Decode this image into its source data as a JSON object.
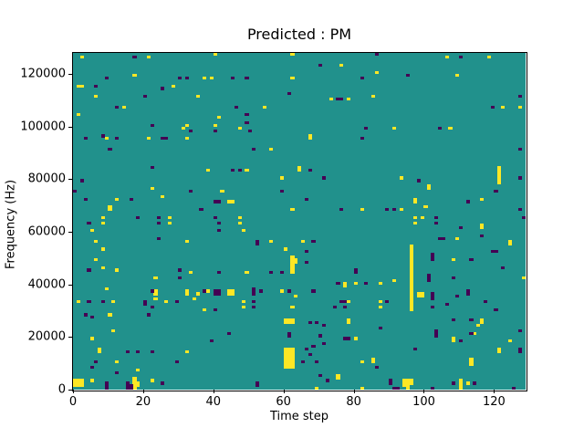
{
  "figure": {
    "title": "Predicted : PM",
    "xlabel": "Time step",
    "ylabel": "Frequency (Hz)"
  },
  "chart_data": {
    "type": "heatmap",
    "title": "Predicted : PM",
    "xlabel": "Time step",
    "ylabel": "Frequency (Hz)",
    "x_range": [
      0,
      129
    ],
    "y_range": [
      0,
      128000
    ],
    "x_ticks": [
      0,
      20,
      40,
      60,
      80,
      100,
      120
    ],
    "y_ticks": [
      0,
      20000,
      40000,
      60000,
      80000,
      100000,
      120000
    ],
    "grid": {
      "cols": 129,
      "rows": 128,
      "hz_per_row": 1000
    },
    "colors": {
      "mid": "#21918c",
      "high": "#fde725",
      "low": "#440154",
      "spine": "#000000",
      "background": "#ffffff"
    },
    "legend": null,
    "note": "cells are [time_bin, freq_bin]; freq_hz = freq_bin * 1000; all other cells are mid value",
    "cells_high": [
      [
        2,
        126
      ],
      [
        21,
        126
      ],
      [
        17,
        119
      ],
      [
        1,
        115
      ],
      [
        2,
        115
      ],
      [
        28,
        115
      ],
      [
        6,
        111
      ],
      [
        14,
        107
      ],
      [
        1,
        104
      ],
      [
        31,
        99
      ],
      [
        9,
        95
      ],
      [
        21,
        95
      ],
      [
        22,
        76
      ],
      [
        25,
        73
      ],
      [
        12,
        72
      ],
      [
        10,
        69
      ],
      [
        10,
        68
      ],
      [
        8,
        65
      ],
      [
        27,
        65
      ],
      [
        8,
        63
      ],
      [
        27,
        63
      ],
      [
        5,
        60
      ],
      [
        6,
        56
      ],
      [
        8,
        53
      ],
      [
        6,
        49
      ],
      [
        8,
        46
      ],
      [
        12,
        45
      ],
      [
        23,
        42
      ],
      [
        9,
        38
      ],
      [
        23,
        37
      ],
      [
        23,
        36
      ],
      [
        23,
        34
      ],
      [
        1,
        33
      ],
      [
        11,
        33
      ],
      [
        26,
        33
      ],
      [
        10,
        28
      ],
      [
        11,
        22
      ],
      [
        5,
        19
      ],
      [
        7,
        15
      ],
      [
        7,
        14
      ],
      [
        12,
        10
      ],
      [
        18,
        7
      ],
      [
        5,
        3
      ],
      [
        22,
        3
      ],
      [
        0,
        1
      ],
      [
        0,
        2
      ],
      [
        0,
        3
      ],
      [
        1,
        1
      ],
      [
        1,
        2
      ],
      [
        1,
        3
      ],
      [
        2,
        1
      ],
      [
        2,
        2
      ],
      [
        2,
        3
      ],
      [
        17,
        0
      ],
      [
        17,
        1
      ],
      [
        17,
        2
      ],
      [
        17,
        3
      ],
      [
        17,
        4
      ],
      [
        18,
        1
      ],
      [
        18,
        2
      ],
      [
        40,
        127
      ],
      [
        62,
        127
      ],
      [
        37,
        118
      ],
      [
        39,
        118
      ],
      [
        62,
        118
      ],
      [
        35,
        111
      ],
      [
        54,
        107
      ],
      [
        41,
        103
      ],
      [
        40,
        100
      ],
      [
        32,
        100
      ],
      [
        47,
        99
      ],
      [
        32,
        95
      ],
      [
        56,
        91
      ],
      [
        38,
        83
      ],
      [
        49,
        83
      ],
      [
        59,
        80
      ],
      [
        42,
        75
      ],
      [
        44,
        71
      ],
      [
        45,
        71
      ],
      [
        62,
        68
      ],
      [
        47,
        65
      ],
      [
        47,
        63
      ],
      [
        48,
        60
      ],
      [
        32,
        56
      ],
      [
        56,
        56
      ],
      [
        60,
        53
      ],
      [
        62,
        44
      ],
      [
        62,
        45
      ],
      [
        62,
        46
      ],
      [
        62,
        47
      ],
      [
        62,
        48
      ],
      [
        62,
        49
      ],
      [
        62,
        50
      ],
      [
        63,
        48
      ],
      [
        63,
        49
      ],
      [
        33,
        44
      ],
      [
        49,
        44
      ],
      [
        32,
        36
      ],
      [
        32,
        37
      ],
      [
        35,
        36
      ],
      [
        38,
        37
      ],
      [
        44,
        36
      ],
      [
        44,
        37
      ],
      [
        45,
        36
      ],
      [
        45,
        37
      ],
      [
        59,
        37
      ],
      [
        34,
        34
      ],
      [
        48,
        33
      ],
      [
        63,
        35
      ],
      [
        37,
        30
      ],
      [
        48,
        31
      ],
      [
        62,
        31
      ],
      [
        32,
        14
      ],
      [
        60,
        26
      ],
      [
        61,
        26
      ],
      [
        62,
        26
      ],
      [
        60,
        25
      ],
      [
        61,
        25
      ],
      [
        62,
        25
      ],
      [
        60,
        8
      ],
      [
        60,
        9
      ],
      [
        60,
        10
      ],
      [
        60,
        11
      ],
      [
        60,
        12
      ],
      [
        60,
        13
      ],
      [
        60,
        14
      ],
      [
        60,
        15
      ],
      [
        61,
        8
      ],
      [
        61,
        9
      ],
      [
        61,
        10
      ],
      [
        61,
        11
      ],
      [
        61,
        12
      ],
      [
        61,
        13
      ],
      [
        61,
        14
      ],
      [
        61,
        15
      ],
      [
        62,
        8
      ],
      [
        62,
        9
      ],
      [
        62,
        10
      ],
      [
        62,
        11
      ],
      [
        62,
        12
      ],
      [
        62,
        13
      ],
      [
        62,
        14
      ],
      [
        62,
        15
      ],
      [
        76,
        123
      ],
      [
        86,
        120
      ],
      [
        73,
        110
      ],
      [
        78,
        110
      ],
      [
        85,
        111
      ],
      [
        91,
        99
      ],
      [
        67,
        96
      ],
      [
        67,
        95
      ],
      [
        64,
        83
      ],
      [
        64,
        84
      ],
      [
        93,
        80
      ],
      [
        82,
        68
      ],
      [
        93,
        68
      ],
      [
        65,
        56
      ],
      [
        77,
        39
      ],
      [
        77,
        40
      ],
      [
        80,
        40
      ],
      [
        87,
        40
      ],
      [
        91,
        41
      ],
      [
        78,
        33
      ],
      [
        87,
        33
      ],
      [
        87,
        31
      ],
      [
        78,
        25
      ],
      [
        78,
        26
      ],
      [
        80,
        19
      ],
      [
        82,
        10
      ],
      [
        85,
        10
      ],
      [
        85,
        11
      ],
      [
        75,
        4
      ],
      [
        75,
        5
      ],
      [
        94,
        1
      ],
      [
        94,
        2
      ],
      [
        94,
        3
      ],
      [
        95,
        0
      ],
      [
        95,
        1
      ],
      [
        95,
        2
      ],
      [
        95,
        3
      ],
      [
        96,
        2
      ],
      [
        96,
        3
      ],
      [
        106,
        126
      ],
      [
        118,
        126
      ],
      [
        109,
        119
      ],
      [
        122,
        107
      ],
      [
        127,
        107
      ],
      [
        107,
        99
      ],
      [
        121,
        78
      ],
      [
        121,
        79
      ],
      [
        121,
        80
      ],
      [
        121,
        81
      ],
      [
        121,
        82
      ],
      [
        121,
        83
      ],
      [
        121,
        84
      ],
      [
        101,
        76
      ],
      [
        101,
        77
      ],
      [
        97,
        71
      ],
      [
        97,
        72
      ],
      [
        116,
        72
      ],
      [
        100,
        69
      ],
      [
        97,
        65
      ],
      [
        99,
        65
      ],
      [
        96,
        30
      ],
      [
        96,
        31
      ],
      [
        96,
        32
      ],
      [
        96,
        33
      ],
      [
        96,
        34
      ],
      [
        96,
        35
      ],
      [
        96,
        36
      ],
      [
        96,
        37
      ],
      [
        96,
        38
      ],
      [
        96,
        39
      ],
      [
        96,
        40
      ],
      [
        96,
        41
      ],
      [
        96,
        42
      ],
      [
        96,
        43
      ],
      [
        96,
        44
      ],
      [
        96,
        45
      ],
      [
        96,
        46
      ],
      [
        96,
        47
      ],
      [
        96,
        48
      ],
      [
        96,
        49
      ],
      [
        96,
        50
      ],
      [
        96,
        51
      ],
      [
        96,
        52
      ],
      [
        96,
        53
      ],
      [
        96,
        54
      ],
      [
        97,
        63
      ],
      [
        116,
        61
      ],
      [
        116,
        62
      ],
      [
        109,
        57
      ],
      [
        124,
        55
      ],
      [
        124,
        56
      ],
      [
        108,
        49
      ],
      [
        128,
        42
      ],
      [
        98,
        35
      ],
      [
        98,
        36
      ],
      [
        99,
        35
      ],
      [
        99,
        36
      ],
      [
        116,
        25
      ],
      [
        116,
        26
      ],
      [
        115,
        24
      ],
      [
        114,
        21
      ],
      [
        108,
        18
      ],
      [
        108,
        19
      ],
      [
        124,
        18
      ],
      [
        121,
        14
      ],
      [
        121,
        15
      ],
      [
        113,
        9
      ],
      [
        113,
        10
      ],
      [
        113,
        11
      ],
      [
        110,
        0
      ],
      [
        110,
        1
      ],
      [
        110,
        2
      ],
      [
        110,
        3
      ],
      [
        112,
        2
      ],
      [
        69,
        0
      ],
      [
        82,
        0
      ]
    ],
    "cells_low": [
      [
        17,
        126
      ],
      [
        9,
        118
      ],
      [
        6,
        115
      ],
      [
        25,
        114
      ],
      [
        30,
        118
      ],
      [
        20,
        111
      ],
      [
        12,
        107
      ],
      [
        22,
        100
      ],
      [
        3,
        95
      ],
      [
        12,
        95
      ],
      [
        25,
        95
      ],
      [
        26,
        95
      ],
      [
        8,
        96
      ],
      [
        10,
        91
      ],
      [
        22,
        84
      ],
      [
        2,
        79
      ],
      [
        0,
        75
      ],
      [
        3,
        72
      ],
      [
        16,
        72
      ],
      [
        18,
        65
      ],
      [
        24,
        65
      ],
      [
        4,
        63
      ],
      [
        24,
        63
      ],
      [
        24,
        57
      ],
      [
        4,
        45
      ],
      [
        30,
        45
      ],
      [
        30,
        42
      ],
      [
        22,
        37
      ],
      [
        4,
        33
      ],
      [
        8,
        33
      ],
      [
        20,
        33
      ],
      [
        29,
        33
      ],
      [
        20,
        32
      ],
      [
        22,
        31
      ],
      [
        3,
        28
      ],
      [
        5,
        27
      ],
      [
        21,
        28
      ],
      [
        15,
        14
      ],
      [
        18,
        14
      ],
      [
        22,
        14
      ],
      [
        6,
        10
      ],
      [
        29,
        10
      ],
      [
        5,
        8
      ],
      [
        12,
        6
      ],
      [
        9,
        0
      ],
      [
        9,
        1
      ],
      [
        9,
        2
      ],
      [
        15,
        0
      ],
      [
        15,
        1
      ],
      [
        15,
        2
      ],
      [
        16,
        0
      ],
      [
        16,
        1
      ],
      [
        25,
        2
      ],
      [
        32,
        118
      ],
      [
        45,
        118
      ],
      [
        49,
        118
      ],
      [
        61,
        112
      ],
      [
        46,
        107
      ],
      [
        49,
        104
      ],
      [
        49,
        101
      ],
      [
        40,
        98
      ],
      [
        50,
        98
      ],
      [
        33,
        98
      ],
      [
        51,
        91
      ],
      [
        45,
        83
      ],
      [
        47,
        83
      ],
      [
        33,
        75
      ],
      [
        59,
        75
      ],
      [
        40,
        71
      ],
      [
        41,
        71
      ],
      [
        36,
        68
      ],
      [
        40,
        65
      ],
      [
        41,
        63
      ],
      [
        41,
        60
      ],
      [
        52,
        55
      ],
      [
        52,
        56
      ],
      [
        41,
        44
      ],
      [
        56,
        44
      ],
      [
        59,
        44
      ],
      [
        37,
        37
      ],
      [
        40,
        36
      ],
      [
        40,
        37
      ],
      [
        41,
        36
      ],
      [
        41,
        37
      ],
      [
        51,
        36
      ],
      [
        51,
        37
      ],
      [
        51,
        38
      ],
      [
        53,
        37
      ],
      [
        61,
        37
      ],
      [
        51,
        33
      ],
      [
        40,
        30
      ],
      [
        51,
        31
      ],
      [
        44,
        21
      ],
      [
        39,
        18
      ],
      [
        61,
        20
      ],
      [
        61,
        21
      ],
      [
        52,
        1
      ],
      [
        52,
        2
      ],
      [
        86,
        127
      ],
      [
        70,
        123
      ],
      [
        82,
        118
      ],
      [
        95,
        119
      ],
      [
        75,
        110
      ],
      [
        76,
        110
      ],
      [
        83,
        99
      ],
      [
        82,
        95
      ],
      [
        67,
        83
      ],
      [
        71,
        80
      ],
      [
        66,
        72
      ],
      [
        76,
        68
      ],
      [
        89,
        68
      ],
      [
        91,
        68
      ],
      [
        68,
        56
      ],
      [
        66,
        52
      ],
      [
        66,
        48
      ],
      [
        80,
        44
      ],
      [
        80,
        45
      ],
      [
        75,
        40
      ],
      [
        83,
        40
      ],
      [
        68,
        37
      ],
      [
        76,
        33
      ],
      [
        77,
        33
      ],
      [
        89,
        33
      ],
      [
        74,
        31
      ],
      [
        77,
        31
      ],
      [
        67,
        25
      ],
      [
        69,
        25
      ],
      [
        71,
        24
      ],
      [
        87,
        23
      ],
      [
        77,
        19
      ],
      [
        78,
        19
      ],
      [
        70,
        20
      ],
      [
        71,
        17
      ],
      [
        68,
        16
      ],
      [
        66,
        15
      ],
      [
        67,
        13
      ],
      [
        65,
        10
      ],
      [
        69,
        10
      ],
      [
        70,
        5
      ],
      [
        86,
        8
      ],
      [
        72,
        3
      ],
      [
        90,
        2
      ],
      [
        90,
        3
      ],
      [
        91,
        0
      ],
      [
        92,
        0
      ],
      [
        110,
        126
      ],
      [
        127,
        111
      ],
      [
        119,
        107
      ],
      [
        104,
        99
      ],
      [
        127,
        91
      ],
      [
        98,
        79
      ],
      [
        120,
        75
      ],
      [
        127,
        80
      ],
      [
        112,
        71
      ],
      [
        127,
        68
      ],
      [
        103,
        65
      ],
      [
        128,
        65
      ],
      [
        103,
        63
      ],
      [
        110,
        61
      ],
      [
        104,
        57
      ],
      [
        105,
        57
      ],
      [
        116,
        58
      ],
      [
        119,
        52
      ],
      [
        120,
        52
      ],
      [
        102,
        49
      ],
      [
        102,
        50
      ],
      [
        102,
        51
      ],
      [
        113,
        49
      ],
      [
        122,
        46
      ],
      [
        101,
        41
      ],
      [
        101,
        42
      ],
      [
        101,
        43
      ],
      [
        108,
        42
      ],
      [
        102,
        34
      ],
      [
        102,
        35
      ],
      [
        102,
        36
      ],
      [
        109,
        35
      ],
      [
        112,
        36
      ],
      [
        112,
        37
      ],
      [
        117,
        33
      ],
      [
        106,
        32
      ],
      [
        102,
        0
      ],
      [
        102,
        31
      ],
      [
        108,
        26
      ],
      [
        113,
        26
      ],
      [
        120,
        30
      ],
      [
        103,
        20
      ],
      [
        103,
        21
      ],
      [
        103,
        22
      ],
      [
        110,
        18
      ],
      [
        113,
        21
      ],
      [
        127,
        22
      ],
      [
        127,
        14
      ],
      [
        127,
        15
      ],
      [
        97,
        15
      ],
      [
        108,
        2
      ],
      [
        114,
        2
      ],
      [
        125,
        0
      ]
    ]
  }
}
